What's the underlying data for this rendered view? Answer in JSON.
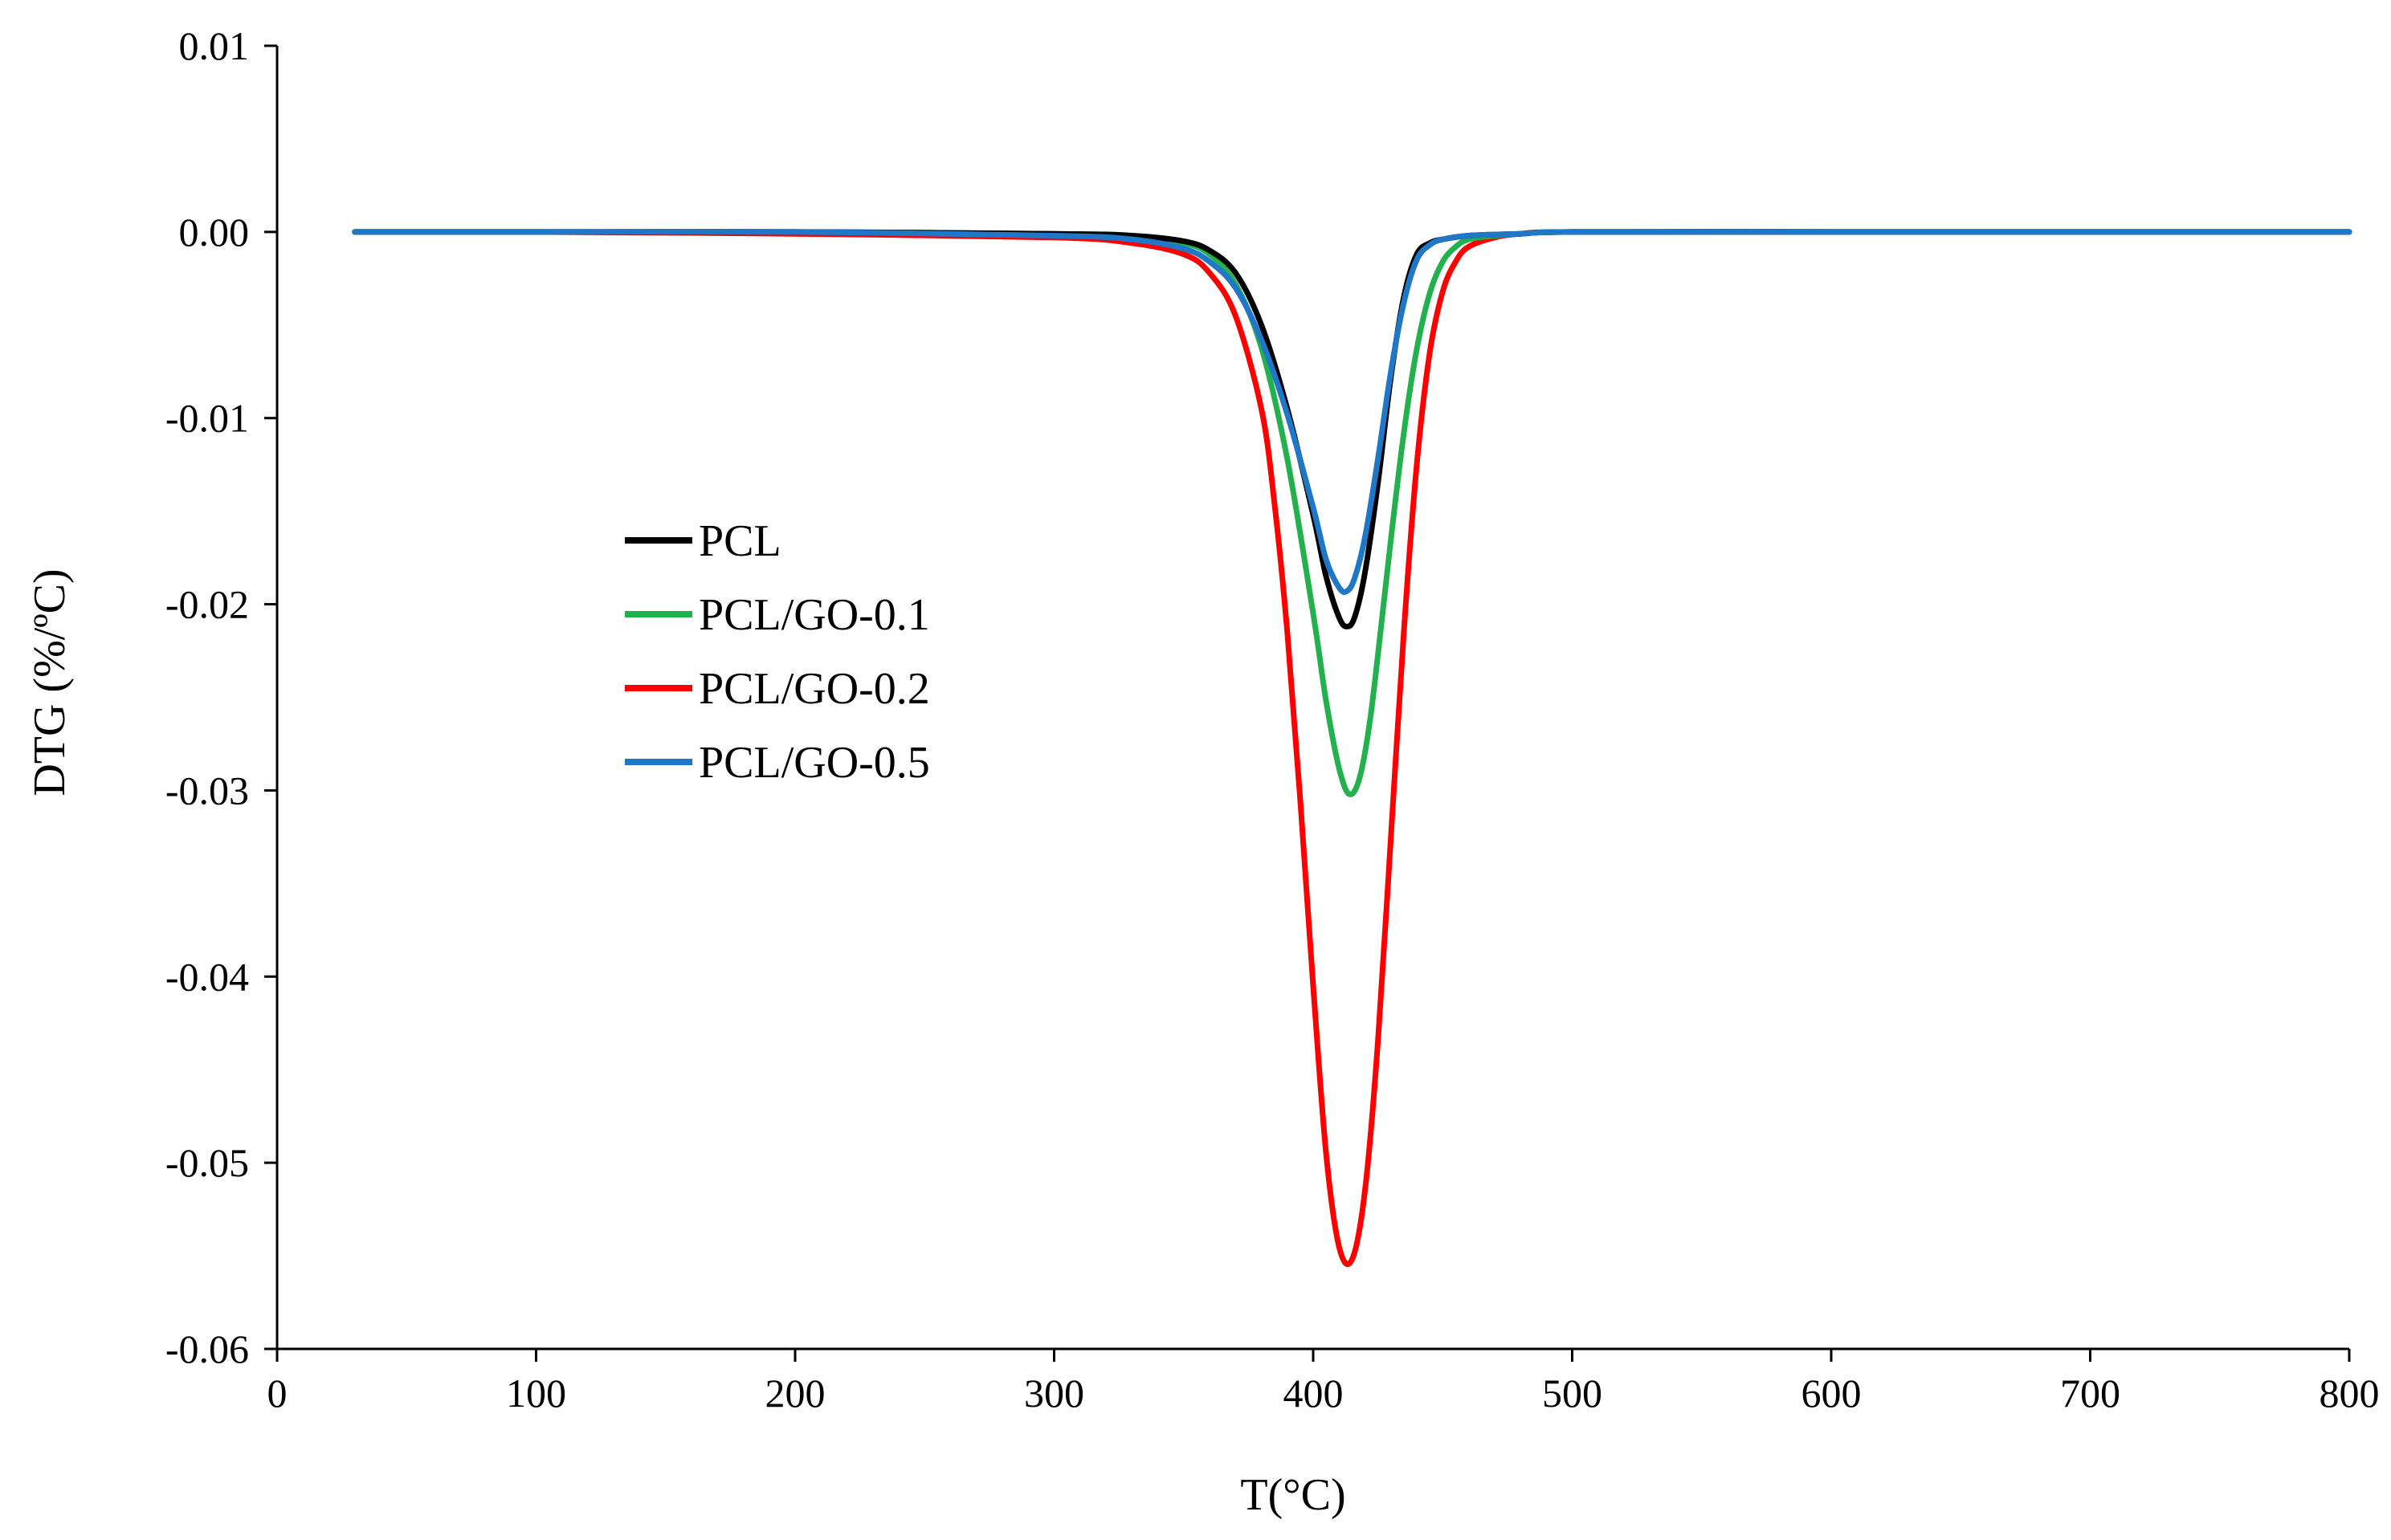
{
  "chart_data": {
    "type": "line",
    "title": "",
    "xlabel": "T(°C)",
    "ylabel": "DTG (%/ºC)",
    "xlim": [
      0,
      800
    ],
    "ylim": [
      -0.06,
      0.01
    ],
    "xticks": [
      0,
      100,
      200,
      300,
      400,
      500,
      600,
      700,
      800
    ],
    "xtick_labels": [
      "0",
      "100",
      "200",
      "300",
      "400",
      "500",
      "600",
      "700",
      "800"
    ],
    "yticks": [
      0.01,
      0.0,
      -0.01,
      -0.02,
      -0.03,
      -0.04,
      -0.05,
      -0.06
    ],
    "ytick_labels": [
      "0.01",
      "0.00",
      "-0.01",
      "-0.02",
      "-0.03",
      "-0.04",
      "-0.05",
      "-0.06"
    ],
    "grid": false,
    "legend_position": "center-left",
    "series": [
      {
        "name": "PCL",
        "color": "#000000",
        "x": [
          30,
          100,
          200,
          300,
          330,
          350,
          360,
          370,
          380,
          390,
          400,
          405,
          410,
          413,
          416,
          420,
          425,
          430,
          435,
          440,
          445,
          450,
          460,
          480,
          500,
          600,
          700,
          800
        ],
        "y": [
          0.0,
          0.0,
          0.0,
          -0.0001,
          -0.0002,
          -0.0005,
          -0.001,
          -0.0022,
          -0.005,
          -0.0095,
          -0.0152,
          -0.0185,
          -0.0207,
          -0.0212,
          -0.0207,
          -0.0183,
          -0.0135,
          -0.0078,
          -0.0035,
          -0.0012,
          -0.0006,
          -0.0004,
          -0.0002,
          -0.0001,
          0.0,
          0.0,
          0.0,
          0.0
        ]
      },
      {
        "name": "PCL/GO-0.1",
        "color": "#22b14c",
        "x": [
          30,
          100,
          200,
          300,
          330,
          350,
          360,
          370,
          380,
          390,
          400,
          405,
          410,
          414,
          418,
          422,
          426,
          430,
          435,
          440,
          445,
          450,
          455,
          460,
          470,
          480,
          500,
          600,
          700,
          800
        ],
        "y": [
          0.0,
          0.0,
          0.0,
          -0.0001,
          -0.0002,
          -0.0006,
          -0.0012,
          -0.0028,
          -0.0062,
          -0.0122,
          -0.0205,
          -0.0252,
          -0.0288,
          -0.0302,
          -0.0293,
          -0.0262,
          -0.0215,
          -0.0165,
          -0.0108,
          -0.0063,
          -0.0033,
          -0.0016,
          -0.0008,
          -0.0004,
          -0.0002,
          -0.0001,
          0.0,
          0.0,
          0.0,
          0.0
        ]
      },
      {
        "name": "PCL/GO-0.2",
        "color": "#ff0000",
        "x": [
          30,
          100,
          200,
          300,
          330,
          350,
          360,
          370,
          380,
          385,
          390,
          395,
          400,
          405,
          410,
          415,
          420,
          425,
          430,
          435,
          440,
          445,
          450,
          455,
          460,
          470,
          480,
          500,
          600,
          700,
          800
        ],
        "y": [
          0.0,
          0.0,
          -0.0001,
          -0.0003,
          -0.0006,
          -0.0012,
          -0.0022,
          -0.0045,
          -0.0095,
          -0.0145,
          -0.0215,
          -0.0305,
          -0.0405,
          -0.0495,
          -0.0545,
          -0.0552,
          -0.0515,
          -0.0435,
          -0.0325,
          -0.0215,
          -0.0125,
          -0.0065,
          -0.0032,
          -0.0016,
          -0.0008,
          -0.0003,
          -0.0001,
          0.0,
          0.0,
          0.0,
          0.0
        ]
      },
      {
        "name": "PCL/GO-0.5",
        "color": "#1f77c8",
        "x": [
          30,
          100,
          200,
          300,
          330,
          350,
          360,
          370,
          380,
          390,
          400,
          405,
          410,
          413,
          416,
          420,
          425,
          430,
          435,
          440,
          445,
          450,
          460,
          480,
          500,
          600,
          700,
          800
        ],
        "y": [
          0.0,
          0.0,
          0.0,
          -0.0002,
          -0.0004,
          -0.0009,
          -0.0016,
          -0.003,
          -0.0058,
          -0.0098,
          -0.0148,
          -0.0176,
          -0.0191,
          -0.0193,
          -0.0186,
          -0.0164,
          -0.0122,
          -0.0075,
          -0.0038,
          -0.0015,
          -0.0007,
          -0.0004,
          -0.0002,
          -0.0001,
          0.0,
          0.0,
          0.0,
          0.0
        ]
      }
    ]
  }
}
